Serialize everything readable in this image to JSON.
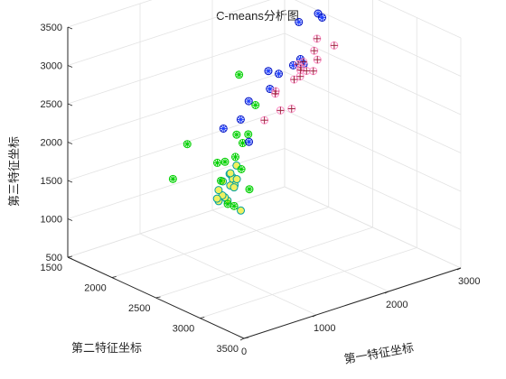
{
  "chart_data": {
    "type": "scatter",
    "title": "C-means分析图",
    "xlabel": "第一特征坐标",
    "ylabel": "第二特征坐标",
    "zlabel": "第三特征坐标",
    "x_ticks": [
      "0",
      "1000",
      "2000",
      "3000"
    ],
    "y_ticks": [
      "1500",
      "2000",
      "2500",
      "3000",
      "3500"
    ],
    "z_ticks": [
      "500",
      "1000",
      "1500",
      "2000",
      "2500",
      "3000",
      "3500"
    ],
    "xlim": [
      0,
      3000
    ],
    "ylim": [
      1500,
      3500
    ],
    "zlim": [
      500,
      3500
    ],
    "grid": true,
    "view": "3d",
    "series": [
      {
        "marker": "circle-filled",
        "fill": "#f0f060",
        "stroke": "#00a0a0",
        "points": [
          [
            200,
            3150,
            2050
          ],
          [
            100,
            3200,
            2150
          ],
          [
            350,
            3050,
            2300
          ],
          [
            80,
            3350,
            2650
          ],
          [
            250,
            3050,
            2050
          ],
          [
            320,
            2950,
            1900
          ],
          [
            450,
            3000,
            2200
          ],
          [
            380,
            2900,
            2000
          ],
          [
            150,
            3250,
            2400
          ],
          [
            300,
            3100,
            2350
          ],
          [
            500,
            2850,
            2050
          ],
          [
            260,
            3180,
            2250
          ],
          [
            420,
            2850,
            1850
          ],
          [
            420,
            3000,
            2100
          ],
          [
            200,
            3300,
            2000
          ],
          [
            350,
            3100,
            2150
          ],
          [
            450,
            3050,
            2200
          ]
        ]
      },
      {
        "marker": "circle-star",
        "fill": "#00d000",
        "stroke": "#00d000",
        "points": [
          [
            800,
            2200,
            2100
          ],
          [
            1100,
            2500,
            2000
          ],
          [
            1000,
            2650,
            1950
          ],
          [
            900,
            2650,
            1500
          ],
          [
            1700,
            2050,
            2650
          ],
          [
            750,
            2700,
            1600
          ],
          [
            1200,
            2500,
            2150
          ],
          [
            850,
            2500,
            2000
          ],
          [
            1400,
            2400,
            2150
          ],
          [
            1050,
            2700,
            1700
          ],
          [
            1500,
            2400,
            2500
          ],
          [
            1200,
            2300,
            1800
          ],
          [
            900,
            2500,
            1750
          ],
          [
            1150,
            1750,
            1300
          ],
          [
            1300,
            2350,
            2150
          ]
        ]
      },
      {
        "marker": "circle-star",
        "fill": "#2040ff",
        "stroke": "#0010c0",
        "points": [
          [
            800,
            2900,
            2500
          ],
          [
            1300,
            2200,
            2150
          ],
          [
            2100,
            2400,
            3400
          ],
          [
            2000,
            2700,
            3700
          ],
          [
            1600,
            2150,
            2150
          ],
          [
            2300,
            2500,
            3450
          ],
          [
            1800,
            2300,
            2800
          ],
          [
            1700,
            2500,
            2900
          ],
          [
            1900,
            2500,
            2950
          ],
          [
            2000,
            2500,
            3000
          ],
          [
            1700,
            2400,
            2650
          ],
          [
            1800,
            2700,
            3100
          ],
          [
            1650,
            2200,
            2400
          ]
        ]
      },
      {
        "marker": "circle-plus",
        "fill": "#ff90c8",
        "stroke": "#a02040",
        "points": [
          [
            2000,
            2400,
            2300
          ],
          [
            2300,
            2250,
            2550
          ],
          [
            2650,
            2350,
            2900
          ],
          [
            2400,
            2100,
            2400
          ],
          [
            2800,
            2000,
            2600
          ],
          [
            2450,
            1850,
            2100
          ],
          [
            2200,
            2050,
            2250
          ],
          [
            2700,
            1900,
            2400
          ],
          [
            2150,
            2150,
            2100
          ],
          [
            2050,
            2050,
            1950
          ],
          [
            2600,
            2200,
            2650
          ],
          [
            2900,
            1950,
            2700
          ],
          [
            2800,
            1850,
            2300
          ],
          [
            2300,
            2400,
            2700
          ],
          [
            2550,
            2050,
            2450
          ],
          [
            2450,
            2200,
            2550
          ],
          [
            2650,
            2000,
            2500
          ]
        ]
      }
    ]
  }
}
